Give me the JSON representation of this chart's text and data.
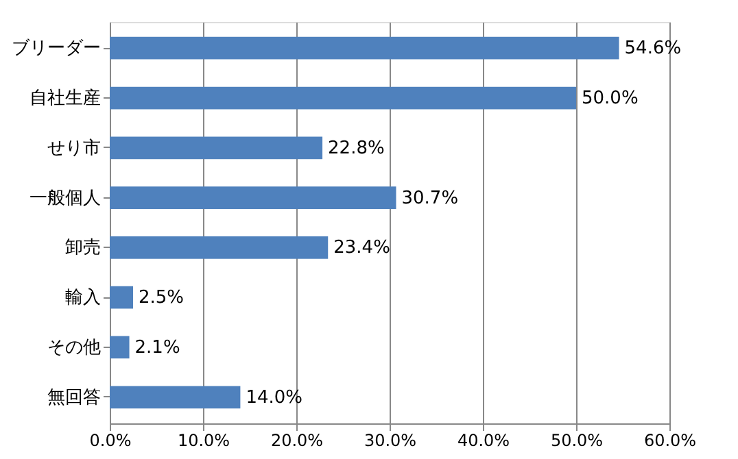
{
  "chart_data": {
    "type": "bar",
    "orientation": "horizontal",
    "categories": [
      "ブリーダー",
      "自社生産",
      "せり市",
      "一般個人",
      "卸売",
      "輸入",
      "その他",
      "無回答"
    ],
    "values": [
      54.6,
      50.0,
      22.8,
      30.7,
      23.4,
      2.5,
      2.1,
      14.0
    ],
    "value_labels": [
      "54.6%",
      "50.0%",
      "22.8%",
      "30.7%",
      "23.4%",
      "2.5%",
      "2.1%",
      "14.0%"
    ],
    "color": "#4f81bd",
    "xlim": [
      0,
      60
    ],
    "xticks": [
      {
        "value": 0,
        "label": "0.0%"
      },
      {
        "value": 10,
        "label": "10.0%"
      },
      {
        "value": 20,
        "label": "20.0%"
      },
      {
        "value": 30,
        "label": "30.0%"
      },
      {
        "value": 40,
        "label": "40.0%"
      },
      {
        "value": 50,
        "label": "50.0%"
      },
      {
        "value": 60,
        "label": "60.0%"
      }
    ],
    "grid": "x"
  }
}
